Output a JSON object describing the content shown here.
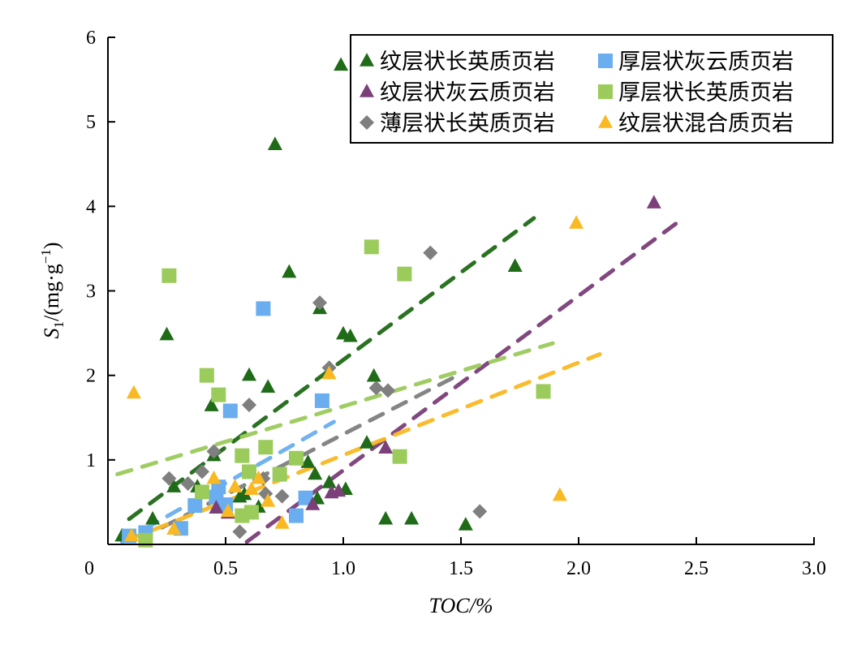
{
  "chart_data": {
    "type": "scatter",
    "xlabel": "TOC/%",
    "ylabel_main": "S",
    "ylabel_sub": "1",
    "ylabel_rest": "/(mg·g",
    "ylabel_sup": "−1",
    "ylabel_close": ")",
    "xlim": [
      0,
      3.0
    ],
    "ylim": [
      0,
      6
    ],
    "xticks": [
      "0",
      "0.5",
      "1.0",
      "1.5",
      "2.0",
      "2.5",
      "3.0"
    ],
    "xtick_values": [
      0,
      0.5,
      1.0,
      1.5,
      2.0,
      2.5,
      3.0
    ],
    "yticks": [
      "1",
      "2",
      "3",
      "4",
      "5",
      "6"
    ],
    "ytick_values": [
      1,
      2,
      3,
      4,
      5,
      6
    ],
    "grid": false,
    "legend_position": "top-right",
    "series": [
      {
        "name": "纹层状长英质页岩",
        "marker": "triangle",
        "color": "#1f6b17",
        "points": [
          [
            0.99,
            5.67
          ],
          [
            0.71,
            4.73
          ],
          [
            0.77,
            3.22
          ],
          [
            0.9,
            2.79
          ],
          [
            0.25,
            2.48
          ],
          [
            1.73,
            3.29
          ],
          [
            1.0,
            2.49
          ],
          [
            1.03,
            2.46
          ],
          [
            0.6,
            2.0
          ],
          [
            0.68,
            1.86
          ],
          [
            1.13,
            1.99
          ],
          [
            0.44,
            1.64
          ],
          [
            1.1,
            1.2
          ],
          [
            0.45,
            1.05
          ],
          [
            0.85,
            0.97
          ],
          [
            0.88,
            0.83
          ],
          [
            0.94,
            0.73
          ],
          [
            1.01,
            0.65
          ],
          [
            0.56,
            0.56
          ],
          [
            0.58,
            0.59
          ],
          [
            0.64,
            0.44
          ],
          [
            0.89,
            0.54
          ],
          [
            1.18,
            0.3
          ],
          [
            1.29,
            0.3
          ],
          [
            1.52,
            0.23
          ],
          [
            0.19,
            0.3
          ],
          [
            0.06,
            0.1
          ],
          [
            0.28,
            0.68
          ],
          [
            0.38,
            0.68
          ]
        ],
        "trend": [
          [
            0.09,
            0.3
          ],
          [
            1.81,
            3.86
          ]
        ]
      },
      {
        "name": "厚层状灰云质页岩",
        "marker": "square",
        "color": "#6aaef0",
        "points": [
          [
            0.66,
            2.79
          ],
          [
            0.91,
            1.7
          ],
          [
            0.52,
            1.58
          ],
          [
            0.37,
            0.46
          ],
          [
            0.47,
            0.68
          ],
          [
            0.46,
            0.56
          ],
          [
            0.5,
            0.47
          ],
          [
            0.84,
            0.55
          ],
          [
            0.8,
            0.34
          ],
          [
            0.31,
            0.19
          ],
          [
            0.16,
            0.14
          ],
          [
            0.09,
            0.1
          ]
        ],
        "trend": [
          [
            0.06,
            0.03
          ],
          [
            0.96,
            1.45
          ]
        ]
      },
      {
        "name": "纹层状灰云质页岩",
        "marker": "triangle",
        "color": "#7b3f7a",
        "points": [
          [
            2.32,
            4.04
          ],
          [
            1.18,
            1.14
          ],
          [
            0.95,
            0.61
          ],
          [
            0.98,
            0.63
          ],
          [
            0.87,
            0.47
          ],
          [
            0.51,
            0.37
          ],
          [
            0.46,
            0.43
          ]
        ],
        "trend": [
          [
            0.59,
            0.03
          ],
          [
            2.43,
            3.83
          ]
        ]
      },
      {
        "name": "厚层状长英质页岩",
        "marker": "square",
        "color": "#9bcb5b",
        "points": [
          [
            1.12,
            3.52
          ],
          [
            0.26,
            3.18
          ],
          [
            1.26,
            3.2
          ],
          [
            0.42,
            2.0
          ],
          [
            0.47,
            1.77
          ],
          [
            1.85,
            1.81
          ],
          [
            0.57,
            1.05
          ],
          [
            0.67,
            1.15
          ],
          [
            1.24,
            1.04
          ],
          [
            0.73,
            0.83
          ],
          [
            0.8,
            1.02
          ],
          [
            0.6,
            0.86
          ],
          [
            0.4,
            0.62
          ],
          [
            0.57,
            0.34
          ],
          [
            0.61,
            0.38
          ],
          [
            0.16,
            0.05
          ]
        ],
        "trend": [
          [
            0.04,
            0.83
          ],
          [
            1.89,
            2.38
          ]
        ]
      },
      {
        "name": "薄层状长英质页岩",
        "marker": "diamond",
        "color": "#7f7f7f",
        "points": [
          [
            1.37,
            3.45
          ],
          [
            0.9,
            2.86
          ],
          [
            0.94,
            2.09
          ],
          [
            0.6,
            1.65
          ],
          [
            1.14,
            1.85
          ],
          [
            1.19,
            1.82
          ],
          [
            0.45,
            1.1
          ],
          [
            0.26,
            0.78
          ],
          [
            0.4,
            0.86
          ],
          [
            0.34,
            0.72
          ],
          [
            0.66,
            0.78
          ],
          [
            0.67,
            0.6
          ],
          [
            0.74,
            0.57
          ],
          [
            0.56,
            0.15
          ],
          [
            1.58,
            0.39
          ]
        ],
        "trend": [
          [
            0.23,
            0.2
          ],
          [
            1.5,
            2.02
          ]
        ]
      },
      {
        "name": "纹层状混合质页岩",
        "marker": "triangle",
        "color": "#f9b923",
        "points": [
          [
            0.11,
            1.79
          ],
          [
            1.99,
            3.8
          ],
          [
            0.94,
            2.02
          ],
          [
            1.92,
            0.58
          ],
          [
            0.45,
            0.78
          ],
          [
            0.54,
            0.68
          ],
          [
            0.61,
            0.65
          ],
          [
            0.64,
            0.78
          ],
          [
            0.68,
            0.51
          ],
          [
            0.74,
            0.25
          ],
          [
            0.51,
            0.39
          ],
          [
            0.28,
            0.18
          ],
          [
            0.1,
            0.1
          ]
        ],
        "trend": [
          [
            0.09,
            0.06
          ],
          [
            2.09,
            2.25
          ]
        ]
      }
    ]
  }
}
